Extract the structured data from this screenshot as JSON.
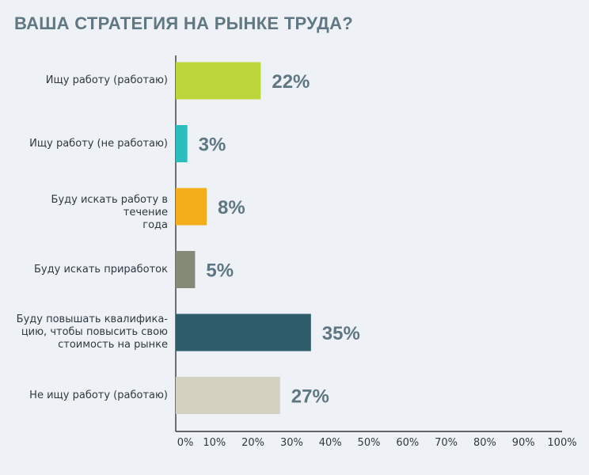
{
  "chart_data": {
    "type": "bar",
    "orientation": "horizontal",
    "title": "ВАША СТРАТЕГИЯ НА РЫНКЕ ТРУДА?",
    "categories": [
      "Ищу работу (работаю)",
      "Ищу работу (не работаю)",
      "Буду искать работу в течение\nгода",
      "Буду искать приработок",
      "Буду повышать квалифика-\nцию, чтобы повысить свою\nстоимость на рынке",
      "Не ищу работу (работаю)"
    ],
    "values": [
      22,
      3,
      8,
      5,
      35,
      27
    ],
    "value_labels": [
      "22%",
      "3%",
      "8%",
      "5%",
      "35%",
      "27%"
    ],
    "colors": [
      "#bcd53a",
      "#2bbcbd",
      "#f4ae1c",
      "#858a77",
      "#2f5c6b",
      "#d4d1c1"
    ],
    "xlim": [
      0,
      100
    ],
    "x_ticks": [
      "0%",
      "10%",
      "20%",
      "30%",
      "40%",
      "50%",
      "60%",
      "70%",
      "80%",
      "90%",
      "100%"
    ],
    "grid": false,
    "legend": "none"
  }
}
